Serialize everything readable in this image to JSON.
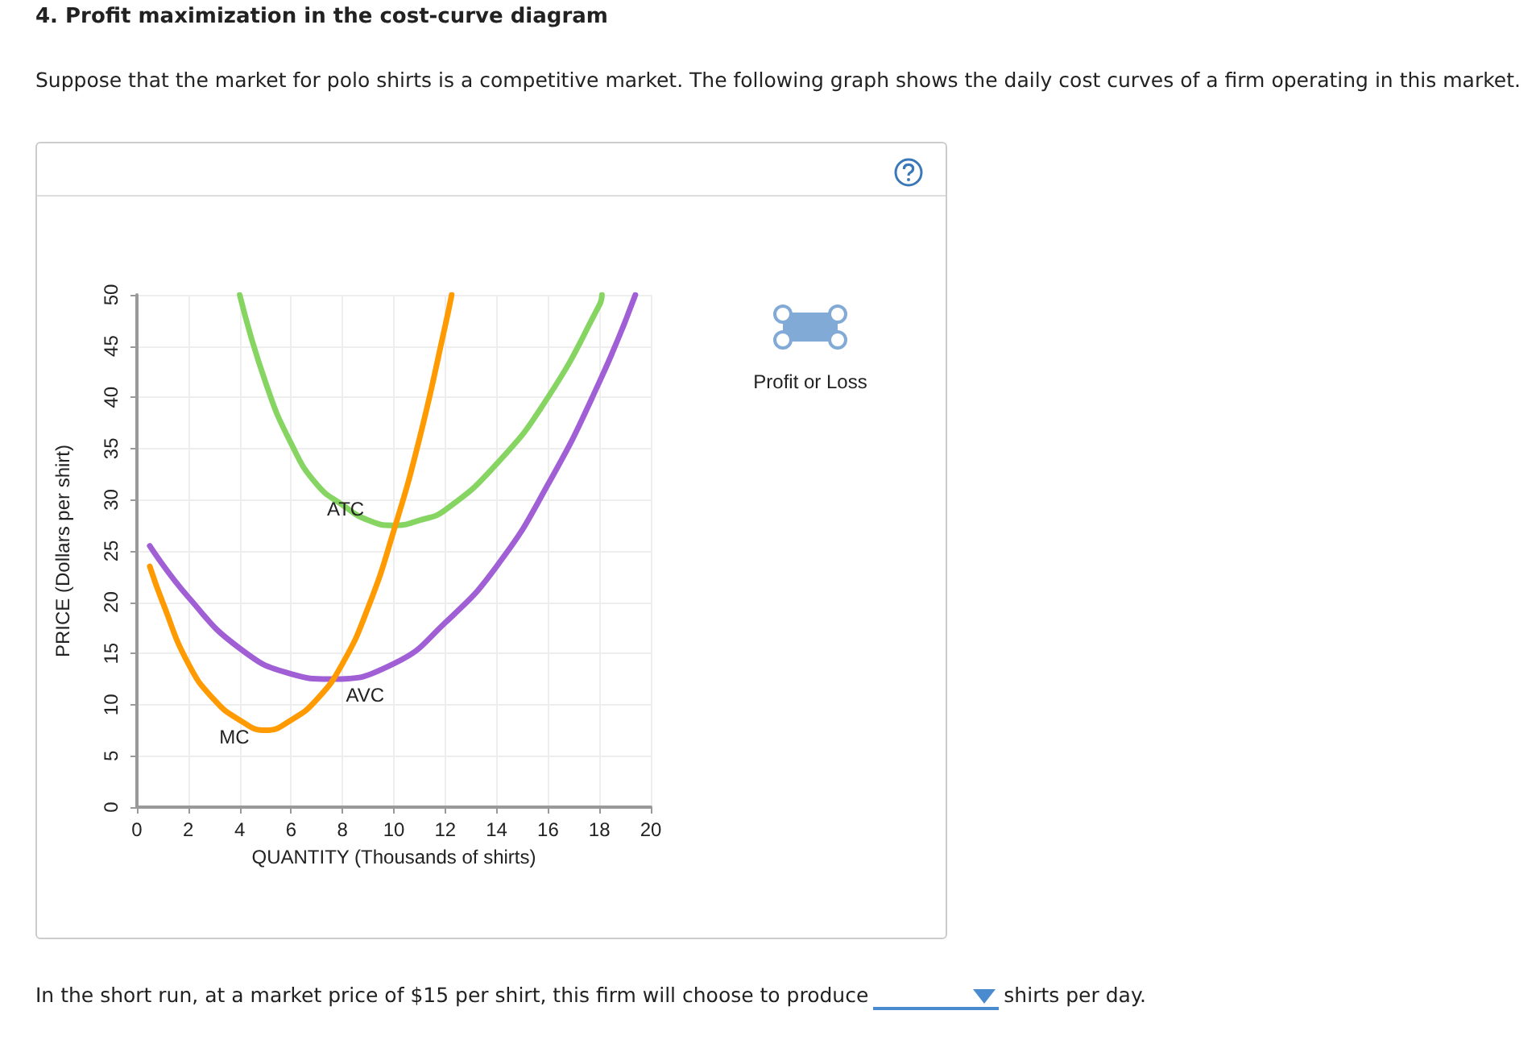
{
  "chart_data": {
    "type": "line",
    "title": "4. Profit maximization in the cost-curve diagram",
    "subtitle": "Suppose that the market for polo shirts is a competitive market. The following graph shows the daily cost curves of a firm operating in this market.",
    "xlabel": "QUANTITY (Thousands of shirts)",
    "ylabel": "PRICE (Dollars per shirt)",
    "series": [
      {
        "name": "ATC",
        "color": "#86d562",
        "x": [
          4,
          5,
          6,
          7,
          8,
          9,
          10,
          11,
          12,
          14,
          16,
          18,
          18.1
        ],
        "values": [
          50,
          41.5,
          35.5,
          31.5,
          29.5,
          28,
          27.5,
          28,
          29,
          33.5,
          40,
          49,
          50
        ]
      },
      {
        "name": "AVC",
        "color": "#a15fd6",
        "x": [
          0.5,
          2,
          4,
          6,
          7.5,
          10,
          12,
          14,
          16,
          18,
          19.4
        ],
        "values": [
          25.5,
          20.5,
          15.5,
          13,
          12.5,
          14,
          18,
          23.5,
          31.5,
          41.5,
          50
        ]
      },
      {
        "name": "MC",
        "color": "#ff9a00",
        "x": [
          0.5,
          1,
          2,
          3,
          4,
          5,
          6,
          7,
          8,
          9,
          10,
          11,
          12,
          12.25
        ],
        "values": [
          23.5,
          20,
          14,
          10.5,
          8.5,
          7.5,
          8.5,
          10.5,
          14,
          19.5,
          27,
          36,
          47,
          50
        ]
      }
    ],
    "xlim": [
      0,
      20
    ],
    "xticks": [
      0,
      2,
      4,
      6,
      8,
      10,
      12,
      14,
      16,
      18,
      20
    ],
    "ylim": [
      0,
      50
    ],
    "yticks": [
      0,
      5,
      10,
      15,
      20,
      25,
      30,
      35,
      40,
      45,
      50
    ],
    "grid": true,
    "marker": "none",
    "line_style": "solid",
    "annotations": [
      "Profit or Loss",
      "In the short run, at a market price of $15 per shirt, this firm will choose to produce",
      "shirts per day."
    ]
  }
}
